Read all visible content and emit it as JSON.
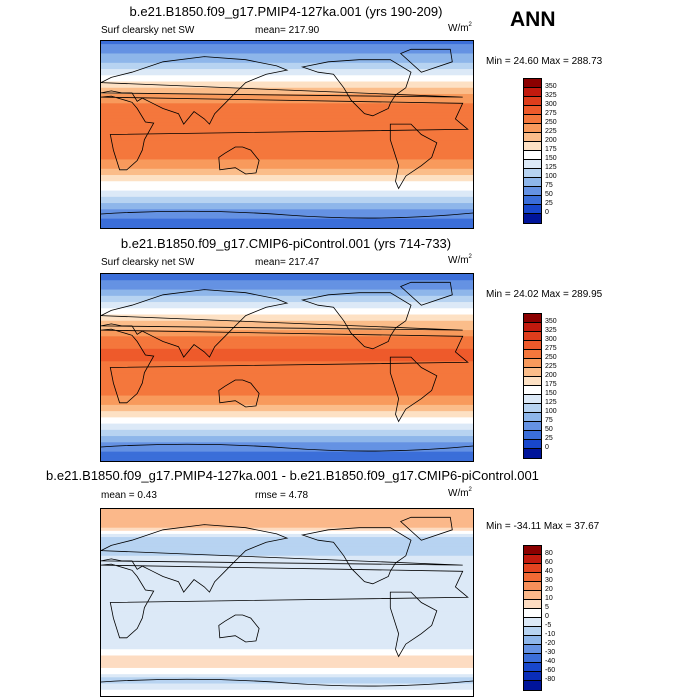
{
  "season": "ANN",
  "panels": [
    {
      "id": "test",
      "title": "b.e21.B1850.f09_g17.PMIP4-127ka.001 (yrs 190-209)",
      "left_label": "Surf clearsky net SW",
      "center_label": "mean= 217.90",
      "units": "W/m",
      "units_sup": "2",
      "minmax": "Min =  24.60 Max = 288.73",
      "map_kind": "absolute"
    },
    {
      "id": "control",
      "title": "b.e21.B1850.f09_g17.CMIP6-piControl.001 (yrs 714-733)",
      "left_label": "Surf clearsky net SW",
      "center_label": "mean= 217.47",
      "units": "W/m",
      "units_sup": "2",
      "minmax": "Min =  24.02 Max = 289.95",
      "map_kind": "absolute"
    },
    {
      "id": "diff",
      "title": "b.e21.B1850.f09_g17.PMIP4-127ka.001 - b.e21.B1850.f09_g17.CMIP6-piControl.001",
      "left_label": "mean =   0.43",
      "center_label": "rmse =   4.78",
      "units": "W/m",
      "units_sup": "2",
      "minmax": "Min = -34.11 Max =  37.67",
      "map_kind": "difference"
    }
  ],
  "colorbar_abs": {
    "levels": [
      "350",
      "325",
      "300",
      "275",
      "250",
      "225",
      "200",
      "175",
      "150",
      "125",
      "100",
      "75",
      "50",
      "25",
      "0"
    ],
    "colors": [
      "#8b0000",
      "#c21a0e",
      "#de3d1c",
      "#ee5a2b",
      "#f4773c",
      "#f89a5c",
      "#fbbd8a",
      "#fde1c4",
      "#ffffff",
      "#dce9f7",
      "#b7d3f1",
      "#8eb6ea",
      "#6592e3",
      "#3b6ed9",
      "#1847cc",
      "#00149a"
    ]
  },
  "colorbar_diff": {
    "levels": [
      "80",
      "60",
      "40",
      "30",
      "20",
      "10",
      "5",
      "0",
      "-5",
      "-10",
      "-20",
      "-30",
      "-40",
      "-60",
      "-80"
    ],
    "colors": [
      "#8b0000",
      "#c21a0e",
      "#e34420",
      "#f26a35",
      "#f7905a",
      "#fbb88a",
      "#fddcc2",
      "#ffffff",
      "#dce9f7",
      "#b7d3f1",
      "#8eb6ea",
      "#6592e3",
      "#3b6ed9",
      "#1847cc",
      "#0a2db8",
      "#00149a"
    ]
  },
  "chart_data": {
    "type": "heatmap",
    "variable": "Surf clearsky net SW",
    "units": "W/m2",
    "season": "ANN",
    "maps": [
      {
        "name": "b.e21.B1850.f09_g17.PMIP4-127ka.001 (yrs 190-209)",
        "mean": 217.9,
        "min": 24.6,
        "max": 288.73,
        "zonal_profile": {
          "lat": [
            90,
            75,
            60,
            45,
            30,
            15,
            0,
            -15,
            -30,
            -45,
            -60,
            -75,
            -90
          ],
          "values": [
            40,
            80,
            140,
            200,
            255,
            275,
            270,
            265,
            240,
            180,
            120,
            60,
            30
          ]
        }
      },
      {
        "name": "b.e21.B1850.f09_g17.CMIP6-piControl.001 (yrs 714-733)",
        "mean": 217.47,
        "min": 24.02,
        "max": 289.95,
        "zonal_profile": {
          "lat": [
            90,
            75,
            60,
            45,
            30,
            15,
            0,
            -15,
            -30,
            -45,
            -60,
            -75,
            -90
          ],
          "values": [
            35,
            75,
            135,
            195,
            252,
            278,
            272,
            268,
            245,
            185,
            125,
            60,
            28
          ]
        }
      },
      {
        "name": "b.e21.B1850.f09_g17.PMIP4-127ka.001 - b.e21.B1850.f09_g17.CMIP6-piControl.001",
        "mean": 0.43,
        "rmse": 4.78,
        "min": -34.11,
        "max": 37.67,
        "zonal_profile": {
          "lat": [
            90,
            75,
            60,
            45,
            30,
            15,
            0,
            -15,
            -30,
            -45,
            -60,
            -75,
            -90
          ],
          "values": [
            20,
            15,
            -8,
            -5,
            -2,
            -3,
            -2,
            -3,
            -5,
            0,
            10,
            -8,
            5
          ]
        }
      }
    ],
    "colorbar_levels_abs": [
      0,
      25,
      50,
      75,
      100,
      125,
      150,
      175,
      200,
      225,
      250,
      275,
      300,
      325,
      350
    ],
    "colorbar_levels_diff": [
      -80,
      -60,
      -40,
      -30,
      -20,
      -10,
      -5,
      0,
      5,
      10,
      20,
      30,
      40,
      60,
      80
    ]
  }
}
